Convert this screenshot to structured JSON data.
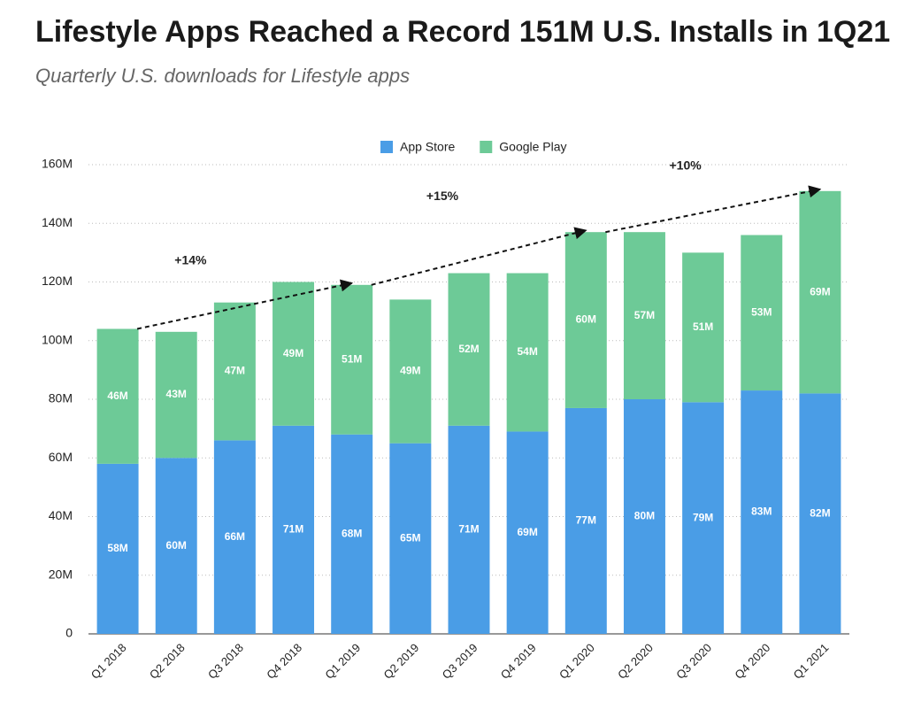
{
  "chart_data": {
    "type": "stacked-bar",
    "title": "Lifestyle Apps Reached a Record 151M U.S. Installs in 1Q21",
    "subtitle": "Quarterly U.S. downloads for Lifestyle apps",
    "categories": [
      "Q1 2018",
      "Q2 2018",
      "Q3 2018",
      "Q4 2018",
      "Q1 2019",
      "Q2 2019",
      "Q3 2019",
      "Q4 2019",
      "Q1 2020",
      "Q2 2020",
      "Q3 2020",
      "Q4 2020",
      "Q1 2021"
    ],
    "series": [
      {
        "name": "App Store",
        "color": "#4a9de6",
        "values": [
          58,
          60,
          66,
          71,
          68,
          65,
          71,
          69,
          77,
          80,
          79,
          83,
          82
        ],
        "value_labels": [
          "58M",
          "60M",
          "66M",
          "71M",
          "68M",
          "65M",
          "71M",
          "69M",
          "77M",
          "80M",
          "79M",
          "83M",
          "82M"
        ]
      },
      {
        "name": "Google Play",
        "color": "#6dca97",
        "values": [
          46,
          43,
          47,
          49,
          51,
          49,
          52,
          54,
          60,
          57,
          51,
          53,
          69
        ],
        "value_labels": [
          "46M",
          "43M",
          "47M",
          "49M",
          "51M",
          "49M",
          "52M",
          "54M",
          "60M",
          "57M",
          "51M",
          "53M",
          "69M"
        ]
      }
    ],
    "annotations": [
      "+14%",
      "+15%",
      "+10%"
    ],
    "ylim": [
      0,
      160
    ],
    "yticks": [
      {
        "value": 0,
        "label": "0"
      },
      {
        "value": 20,
        "label": "20M"
      },
      {
        "value": 40,
        "label": "40M"
      },
      {
        "value": 60,
        "label": "60M"
      },
      {
        "value": 80,
        "label": "80M"
      },
      {
        "value": 100,
        "label": "100M"
      },
      {
        "value": 120,
        "label": "120M"
      },
      {
        "value": 140,
        "label": "140M"
      },
      {
        "value": 160,
        "label": "160M"
      }
    ],
    "grid": true,
    "legend": "top"
  }
}
